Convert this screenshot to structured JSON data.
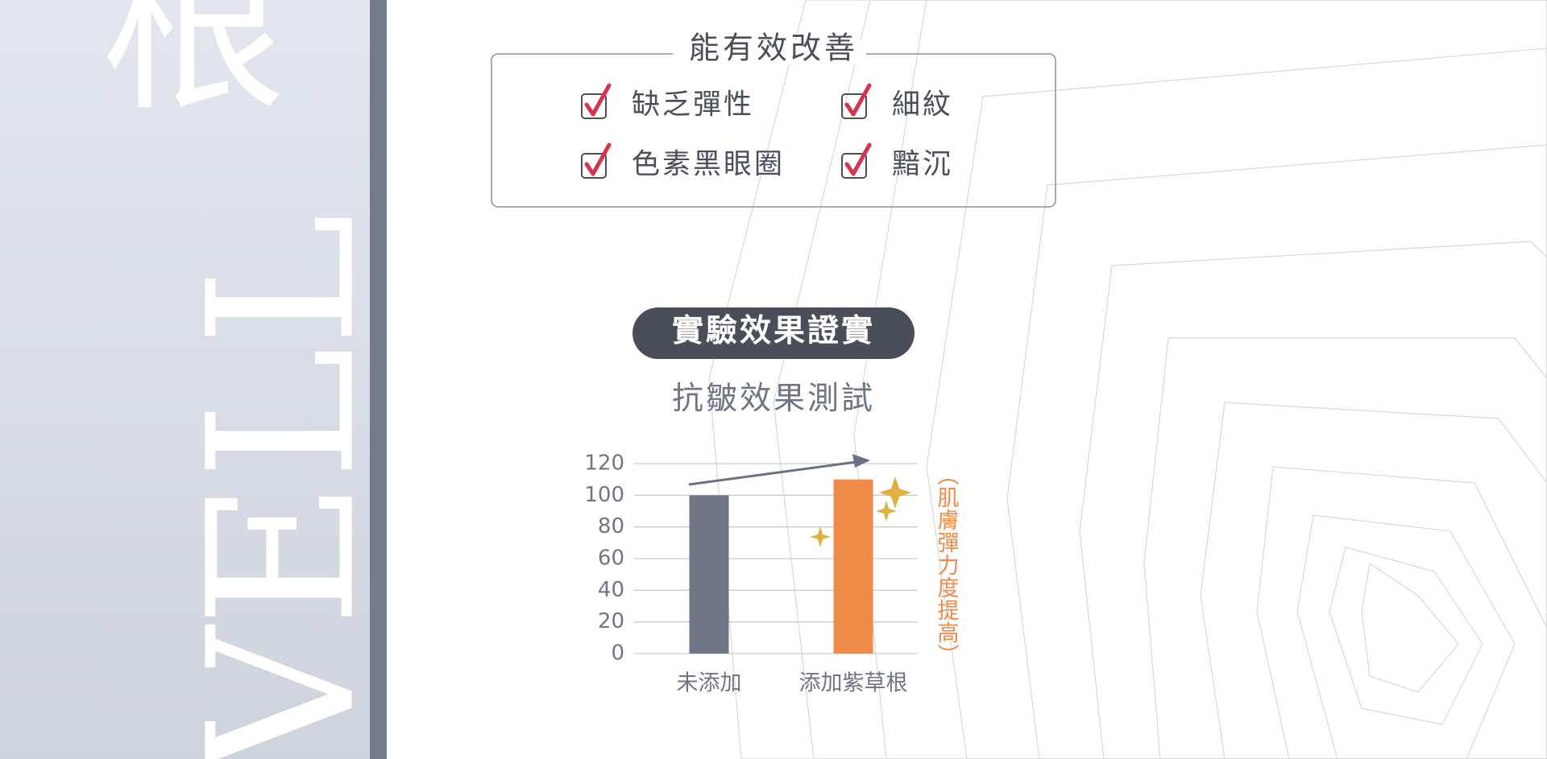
{
  "sidebar": {
    "big_char": "根",
    "word": "VELL"
  },
  "improve_box": {
    "title": "能有效改善",
    "items": [
      "缺乏彈性",
      "細紋",
      "色素黑眼圈",
      "黯沉"
    ]
  },
  "badge": "實驗效果證實",
  "chart_data": {
    "type": "bar",
    "title": "抗皺效果測試",
    "categories": [
      "未添加",
      "添加紫草根"
    ],
    "values": [
      100,
      110
    ],
    "colors": [
      "#707686",
      "#f08a48"
    ],
    "ylim": [
      0,
      120
    ],
    "yticks": [
      0,
      20,
      40,
      60,
      80,
      100,
      120
    ],
    "grid": true,
    "annotation": "（肌膚彈力度提高）"
  }
}
